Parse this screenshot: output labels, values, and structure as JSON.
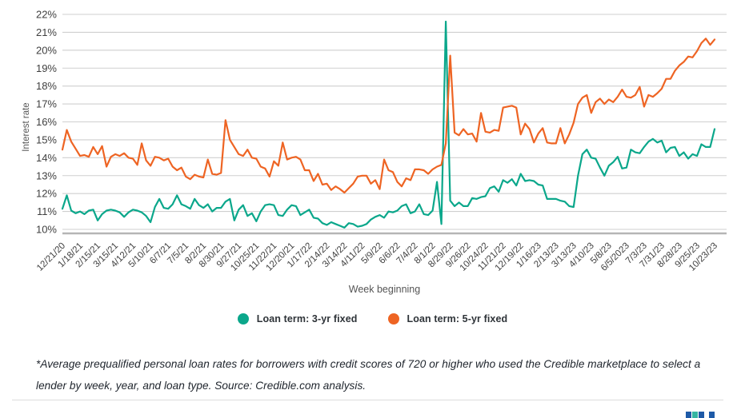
{
  "chart": {
    "y_axis_label": "Interest rate",
    "x_axis_label": "Week beginning",
    "y_ticks": [
      "22%",
      "21%",
      "20%",
      "19%",
      "18%",
      "17%",
      "16%",
      "15%",
      "14%",
      "13%",
      "12%",
      "11%",
      "10%"
    ]
  },
  "chart_data": {
    "type": "line",
    "title": "",
    "xlabel": "Week beginning",
    "ylabel": "Interest rate",
    "ylim": [
      10,
      22
    ],
    "y_tick_step": 1,
    "grid": "horizontal",
    "legend_position": "bottom",
    "x_unit": "week",
    "x_tick_interval_weeks": 4,
    "x_tick_labels": [
      "12/21/20",
      "1/18/21",
      "2/15/21",
      "3/15/21",
      "4/12/21",
      "5/10/21",
      "6/7/21",
      "7/5/21",
      "8/2/21",
      "8/30/21",
      "9/27/21",
      "10/25/21",
      "11/22/21",
      "12/20/21",
      "1/17/22",
      "2/14/22",
      "3/14/22",
      "4/11/22",
      "5/9/22",
      "6/6/22",
      "7/4/22",
      "8/1/22",
      "8/29/22",
      "9/26/22",
      "10/24/22",
      "11/21/22",
      "12/19/22",
      "1/16/23",
      "2/13/23",
      "3/13/23",
      "4/10/23",
      "5/8/23",
      "6/5/2023",
      "7/3/23",
      "7/31/23",
      "8/28/23",
      "9/25/23",
      "10/23/23"
    ],
    "series": [
      {
        "name": "Loan term: 3-yr fixed",
        "color": "#0ba78b",
        "values": [
          11.15,
          11.9,
          11.05,
          10.9,
          11.0,
          10.85,
          11.05,
          11.1,
          10.5,
          10.85,
          11.05,
          11.1,
          11.05,
          10.95,
          10.7,
          10.95,
          11.1,
          11.05,
          10.95,
          10.75,
          10.4,
          11.25,
          11.7,
          11.2,
          11.15,
          11.4,
          11.9,
          11.4,
          11.3,
          11.15,
          11.7,
          11.35,
          11.2,
          11.4,
          11.0,
          11.2,
          11.2,
          11.55,
          11.7,
          10.5,
          11.1,
          11.35,
          10.75,
          10.9,
          10.45,
          11.0,
          11.35,
          11.4,
          11.35,
          10.8,
          10.75,
          11.1,
          11.35,
          11.3,
          10.8,
          10.95,
          11.1,
          10.65,
          10.6,
          10.35,
          10.25,
          10.4,
          10.3,
          10.2,
          10.1,
          10.35,
          10.3,
          10.15,
          10.2,
          10.3,
          10.55,
          10.7,
          10.8,
          10.65,
          11.0,
          10.95,
          11.05,
          11.3,
          11.4,
          10.9,
          11.0,
          11.4,
          10.85,
          10.8,
          11.05,
          12.65,
          10.3,
          21.6,
          11.6,
          11.3,
          11.5,
          11.3,
          11.3,
          11.75,
          11.7,
          11.8,
          11.85,
          12.3,
          12.4,
          12.1,
          12.75,
          12.6,
          12.8,
          12.45,
          13.1,
          12.7,
          12.75,
          12.7,
          12.5,
          12.45,
          11.7,
          11.7,
          11.7,
          11.6,
          11.55,
          11.3,
          11.25,
          13.0,
          14.2,
          14.45,
          14.0,
          13.95,
          13.45,
          13.0,
          13.55,
          13.75,
          14.05,
          13.4,
          13.45,
          14.45,
          14.3,
          14.25,
          14.6,
          14.9,
          15.05,
          14.85,
          14.95,
          14.3,
          14.55,
          14.6,
          14.1,
          14.3,
          13.95,
          14.2,
          14.1,
          14.75,
          14.6,
          14.6,
          15.6
        ]
      },
      {
        "name": "Loan term: 5-yr fixed",
        "color": "#ee6423",
        "values": [
          14.45,
          15.55,
          14.9,
          14.5,
          14.1,
          14.15,
          14.05,
          14.6,
          14.2,
          14.65,
          13.5,
          14.05,
          14.2,
          14.1,
          14.25,
          14.0,
          13.95,
          13.6,
          14.8,
          13.85,
          13.55,
          14.05,
          14.0,
          13.85,
          13.95,
          13.5,
          13.3,
          13.45,
          12.95,
          12.8,
          13.05,
          12.95,
          12.9,
          13.9,
          13.1,
          13.05,
          13.15,
          16.1,
          15.0,
          14.6,
          14.2,
          14.1,
          14.45,
          14.0,
          13.95,
          13.5,
          13.4,
          12.95,
          13.8,
          13.55,
          14.85,
          13.9,
          14.0,
          14.05,
          13.9,
          13.3,
          13.3,
          12.7,
          13.1,
          12.5,
          12.55,
          12.2,
          12.4,
          12.25,
          12.05,
          12.3,
          12.55,
          12.95,
          13.0,
          13.0,
          12.55,
          12.75,
          12.25,
          13.9,
          13.3,
          13.2,
          12.65,
          12.4,
          12.85,
          12.75,
          13.35,
          13.35,
          13.3,
          13.1,
          13.35,
          13.5,
          13.6,
          14.8,
          19.7,
          15.4,
          15.25,
          15.6,
          15.3,
          15.35,
          14.9,
          16.5,
          15.45,
          15.4,
          15.55,
          15.5,
          16.8,
          16.85,
          16.9,
          16.8,
          15.3,
          15.9,
          15.6,
          14.85,
          15.35,
          15.65,
          14.85,
          14.8,
          14.8,
          15.65,
          14.8,
          15.3,
          15.95,
          17.0,
          17.35,
          17.5,
          16.5,
          17.1,
          17.3,
          17.0,
          17.25,
          17.1,
          17.4,
          17.8,
          17.4,
          17.35,
          17.5,
          17.95,
          16.85,
          17.5,
          17.4,
          17.6,
          17.85,
          18.4,
          18.4,
          18.85,
          19.15,
          19.35,
          19.65,
          19.6,
          19.95,
          20.4,
          20.65,
          20.3,
          20.6
        ]
      }
    ]
  },
  "legend": {
    "items": [
      {
        "label": "Loan term: 3-yr fixed",
        "color": "#0ba78b"
      },
      {
        "label": "Loan term: 5-yr fixed",
        "color": "#ee6423"
      }
    ]
  },
  "footnote": "*Average prequalified personal loan rates for borrowers with credit scores of 720 or higher who used the Credible marketplace to select a lender by week, year, and loan type. Source: Credible.com analysis.",
  "colors": {
    "gridline": "#cfcfcf",
    "axis_line": "#b5b5b5",
    "tick_text": "#3f3f3f",
    "axis_title": "#555555",
    "logo_blue": "#1e5aa7",
    "logo_teal": "#35b5a2"
  }
}
